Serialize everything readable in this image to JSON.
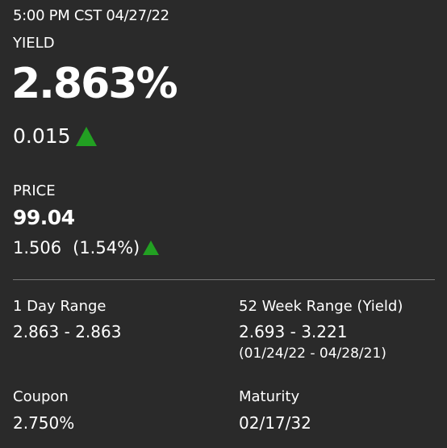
{
  "timestamp": "5:00 PM CST 04/27/22",
  "yield": {
    "label": "YIELD",
    "value": "2.863%",
    "change": "0.015",
    "direction": "up"
  },
  "price": {
    "label": "PRICE",
    "value": "99.04",
    "change": "1.506",
    "change_pct": "(1.54%)",
    "direction": "up"
  },
  "stats": {
    "day_range": {
      "label": "1 Day Range",
      "value": "2.863 - 2.863"
    },
    "week52_range": {
      "label": "52 Week Range (Yield)",
      "value": "2.693 - 3.221",
      "dates": "(01/24/22 - 04/28/21)"
    },
    "coupon": {
      "label": "Coupon",
      "value": "2.750%"
    },
    "maturity": {
      "label": "Maturity",
      "value": "02/17/32"
    }
  },
  "colors": {
    "background": "#2a2a2a",
    "text": "#ffffff",
    "up": "#22a022",
    "divider": "#777777"
  },
  "icons": {
    "up_arrow": "triangle-up-icon"
  }
}
